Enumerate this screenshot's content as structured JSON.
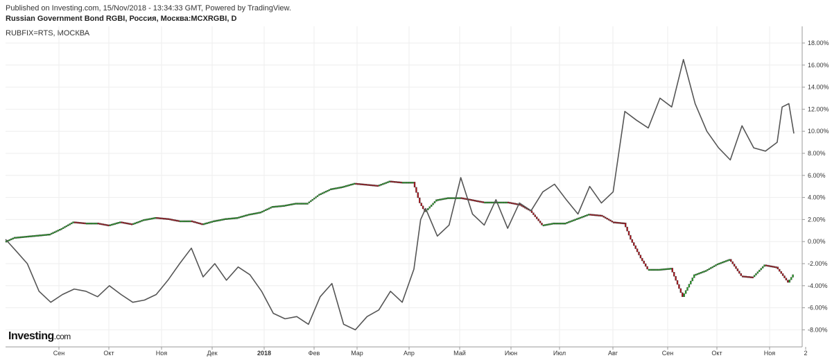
{
  "header": {
    "published": "Published on Investing.com, 15/Nov/2018 - 13:34:33 GMT, Powered by TradingView.",
    "title": "Russian Government Bond RGBI, Россия, Москва:MCXRGBI, D",
    "series2_label": "RUBFIX=RTS, МОСКВА"
  },
  "logo": {
    "main": "Investing",
    "suffix": ".com"
  },
  "colors": {
    "up": "#22aa22",
    "down": "#b5121b",
    "line": "#555555",
    "grid": "#eeeeee"
  },
  "chart_data": {
    "type": "line",
    "x_ticks": [
      "Сен",
      "Окт",
      "Ноя",
      "Дек",
      "2018",
      "Фев",
      "Мар",
      "Апр",
      "Май",
      "Июн",
      "Июл",
      "Авг",
      "Сен",
      "Окт",
      "Ноя",
      "2"
    ],
    "y_ticks": [
      "18.00%",
      "16.00%",
      "14.00%",
      "12.00%",
      "10.00%",
      "8.00%",
      "6.00%",
      "4.00%",
      "2.00%",
      "0.00%",
      "-2.00%",
      "-4.00%",
      "-6.00%",
      "-8.00%"
    ],
    "ylim": [
      -9,
      19
    ],
    "series": [
      {
        "name": "Russian Government Bond RGBI",
        "style": "candles",
        "points": [
          [
            "2017-08-01",
            0.0
          ],
          [
            "2017-08-07",
            0.4
          ],
          [
            "2017-08-14",
            0.5
          ],
          [
            "2017-08-21",
            0.6
          ],
          [
            "2017-08-28",
            0.7
          ],
          [
            "2017-09-04",
            1.2
          ],
          [
            "2017-09-11",
            1.8
          ],
          [
            "2017-09-18",
            1.7
          ],
          [
            "2017-09-25",
            1.7
          ],
          [
            "2017-10-02",
            1.5
          ],
          [
            "2017-10-09",
            1.8
          ],
          [
            "2017-10-16",
            1.6
          ],
          [
            "2017-10-23",
            2.0
          ],
          [
            "2017-10-30",
            2.2
          ],
          [
            "2017-11-06",
            2.1
          ],
          [
            "2017-11-13",
            1.9
          ],
          [
            "2017-11-20",
            1.9
          ],
          [
            "2017-11-27",
            1.6
          ],
          [
            "2017-12-04",
            1.9
          ],
          [
            "2017-12-11",
            2.1
          ],
          [
            "2017-12-18",
            2.2
          ],
          [
            "2017-12-25",
            2.5
          ],
          [
            "2018-01-01",
            2.7
          ],
          [
            "2018-01-08",
            3.2
          ],
          [
            "2018-01-15",
            3.3
          ],
          [
            "2018-01-22",
            3.5
          ],
          [
            "2018-01-29",
            3.5
          ],
          [
            "2018-02-05",
            4.3
          ],
          [
            "2018-02-12",
            4.8
          ],
          [
            "2018-02-19",
            5.0
          ],
          [
            "2018-02-26",
            5.3
          ],
          [
            "2018-03-05",
            5.2
          ],
          [
            "2018-03-12",
            5.1
          ],
          [
            "2018-03-19",
            5.5
          ],
          [
            "2018-03-26",
            5.4
          ],
          [
            "2018-04-02",
            5.4
          ],
          [
            "2018-04-06",
            3.5
          ],
          [
            "2018-04-09",
            2.7
          ],
          [
            "2018-04-16",
            3.8
          ],
          [
            "2018-04-23",
            4.0
          ],
          [
            "2018-04-30",
            4.0
          ],
          [
            "2018-05-07",
            3.8
          ],
          [
            "2018-05-14",
            3.6
          ],
          [
            "2018-05-21",
            3.6
          ],
          [
            "2018-05-28",
            3.6
          ],
          [
            "2018-06-04",
            3.4
          ],
          [
            "2018-06-11",
            2.8
          ],
          [
            "2018-06-18",
            1.5
          ],
          [
            "2018-06-25",
            1.7
          ],
          [
            "2018-07-02",
            1.7
          ],
          [
            "2018-07-09",
            2.1
          ],
          [
            "2018-07-16",
            2.5
          ],
          [
            "2018-07-23",
            2.4
          ],
          [
            "2018-07-30",
            1.8
          ],
          [
            "2018-08-06",
            1.7
          ],
          [
            "2018-08-10",
            0.2
          ],
          [
            "2018-08-16",
            -1.5
          ],
          [
            "2018-08-20",
            -2.5
          ],
          [
            "2018-08-27",
            -2.5
          ],
          [
            "2018-09-03",
            -2.4
          ],
          [
            "2018-09-10",
            -5.0
          ],
          [
            "2018-09-17",
            -3.0
          ],
          [
            "2018-09-24",
            -2.6
          ],
          [
            "2018-10-01",
            -2.0
          ],
          [
            "2018-10-08",
            -1.6
          ],
          [
            "2018-10-15",
            -3.1
          ],
          [
            "2018-10-22",
            -3.2
          ],
          [
            "2018-10-29",
            -2.1
          ],
          [
            "2018-11-05",
            -2.3
          ],
          [
            "2018-11-12",
            -3.7
          ],
          [
            "2018-11-15",
            -3.0
          ]
        ]
      },
      {
        "name": "RUBFIX=RTS, МОСКВА",
        "style": "line",
        "points": [
          [
            "2017-08-01",
            0.2
          ],
          [
            "2017-08-07",
            -0.8
          ],
          [
            "2017-08-14",
            -2.0
          ],
          [
            "2017-08-21",
            -4.5
          ],
          [
            "2017-08-28",
            -5.5
          ],
          [
            "2017-09-04",
            -4.8
          ],
          [
            "2017-09-11",
            -4.3
          ],
          [
            "2017-09-18",
            -4.5
          ],
          [
            "2017-09-25",
            -5.0
          ],
          [
            "2017-10-02",
            -4.0
          ],
          [
            "2017-10-09",
            -4.8
          ],
          [
            "2017-10-16",
            -5.5
          ],
          [
            "2017-10-23",
            -5.3
          ],
          [
            "2017-10-30",
            -4.8
          ],
          [
            "2017-11-06",
            -3.5
          ],
          [
            "2017-11-13",
            -2.0
          ],
          [
            "2017-11-20",
            -0.6
          ],
          [
            "2017-11-27",
            -3.2
          ],
          [
            "2017-12-04",
            -2.0
          ],
          [
            "2017-12-11",
            -3.5
          ],
          [
            "2017-12-18",
            -2.3
          ],
          [
            "2017-12-25",
            -3.0
          ],
          [
            "2018-01-01",
            -4.5
          ],
          [
            "2018-01-08",
            -6.5
          ],
          [
            "2018-01-15",
            -7.0
          ],
          [
            "2018-01-22",
            -6.8
          ],
          [
            "2018-01-29",
            -7.5
          ],
          [
            "2018-02-05",
            -5.0
          ],
          [
            "2018-02-12",
            -3.8
          ],
          [
            "2018-02-19",
            -7.5
          ],
          [
            "2018-02-26",
            -8.0
          ],
          [
            "2018-03-05",
            -6.8
          ],
          [
            "2018-03-12",
            -6.2
          ],
          [
            "2018-03-19",
            -4.5
          ],
          [
            "2018-03-26",
            -5.5
          ],
          [
            "2018-04-02",
            -2.5
          ],
          [
            "2018-04-06",
            2.0
          ],
          [
            "2018-04-09",
            3.0
          ],
          [
            "2018-04-16",
            0.5
          ],
          [
            "2018-04-23",
            1.5
          ],
          [
            "2018-04-30",
            5.8
          ],
          [
            "2018-05-07",
            2.5
          ],
          [
            "2018-05-14",
            1.5
          ],
          [
            "2018-05-21",
            3.8
          ],
          [
            "2018-05-28",
            1.2
          ],
          [
            "2018-06-04",
            3.5
          ],
          [
            "2018-06-11",
            2.8
          ],
          [
            "2018-06-18",
            4.5
          ],
          [
            "2018-06-25",
            5.2
          ],
          [
            "2018-07-02",
            3.8
          ],
          [
            "2018-07-09",
            2.5
          ],
          [
            "2018-07-16",
            5.0
          ],
          [
            "2018-07-23",
            3.5
          ],
          [
            "2018-07-30",
            4.5
          ],
          [
            "2018-08-06",
            11.8
          ],
          [
            "2018-08-13",
            11.0
          ],
          [
            "2018-08-20",
            10.3
          ],
          [
            "2018-08-27",
            13.0
          ],
          [
            "2018-09-03",
            12.2
          ],
          [
            "2018-09-10",
            16.5
          ],
          [
            "2018-09-17",
            12.5
          ],
          [
            "2018-09-24",
            10.0
          ],
          [
            "2018-10-01",
            8.5
          ],
          [
            "2018-10-08",
            7.4
          ],
          [
            "2018-10-15",
            10.5
          ],
          [
            "2018-10-22",
            8.5
          ],
          [
            "2018-10-29",
            8.2
          ],
          [
            "2018-11-05",
            9.0
          ],
          [
            "2018-11-08",
            12.2
          ],
          [
            "2018-11-12",
            12.5
          ],
          [
            "2018-11-15",
            9.8
          ]
        ]
      }
    ]
  }
}
